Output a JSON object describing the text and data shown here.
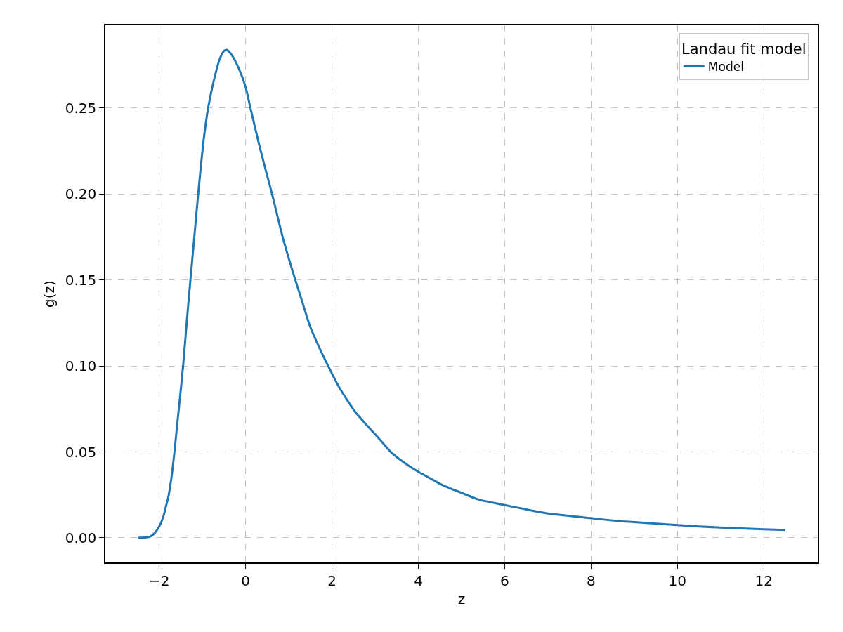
{
  "chart_data": {
    "type": "line",
    "xlabel": "z",
    "ylabel": "g(z)",
    "legend_title": "Landau fit model",
    "x": [
      -2.5,
      -2.3,
      -2.22,
      -2.11,
      -2.0,
      -1.95,
      -1.9,
      -1.85,
      -1.79,
      -1.72,
      -1.65,
      -1.57,
      -1.52,
      -1.45,
      -1.355,
      -1.28,
      -1.19,
      -1.1,
      -0.98,
      -0.87,
      -0.76,
      -0.6,
      -0.5,
      -0.44,
      -0.33,
      -0.16,
      0,
      0.11,
      0.33,
      0.61,
      0.87,
      1.15,
      1.27,
      1.49,
      1.7,
      1.91,
      2.14,
      2.27,
      2.54,
      2.82,
      3.09,
      3.36,
      3.74,
      4,
      4.29,
      4.56,
      5,
      5.38,
      6,
      6.47,
      7,
      8,
      8.64,
      9,
      10,
      11,
      12,
      12.5
    ],
    "series": [
      {
        "name": "Model",
        "color": "#1f77b4",
        "values": [
          0.0,
          0.0003,
          0.0007,
          0.0027,
          0.0068,
          0.0095,
          0.013,
          0.018,
          0.024,
          0.035,
          0.05,
          0.07,
          0.082,
          0.1,
          0.1287,
          0.15,
          0.175,
          0.2,
          0.23,
          0.25,
          0.2636,
          0.2786,
          0.2832,
          0.2838,
          0.2811,
          0.273,
          0.262,
          0.25,
          0.2268,
          0.2,
          0.1737,
          0.15,
          0.1406,
          0.1231,
          0.1109,
          0.1,
          0.0887,
          0.0833,
          0.0732,
          0.0651,
          0.0577,
          0.05,
          0.0426,
          0.0385,
          0.0344,
          0.0307,
          0.0262,
          0.0224,
          0.0191,
          0.0167,
          0.0142,
          0.0115,
          0.0098,
          0.0092,
          0.0074,
          0.006,
          0.005,
          0.0046
        ]
      }
    ],
    "xlim": [
      -3.25,
      13.25
    ],
    "ylim": [
      -0.0143,
      0.2981
    ],
    "xticks": [
      {
        "value": -2,
        "label": "−2"
      },
      0,
      2,
      4,
      6,
      8,
      10,
      12
    ],
    "yticks": [
      {
        "value": 0,
        "label": "0.00"
      },
      {
        "value": 0.05,
        "label": "0.05"
      },
      {
        "value": 0.1,
        "label": "0.10"
      },
      {
        "value": 0.15,
        "label": "0.15"
      },
      {
        "value": 0.2,
        "label": "0.20"
      },
      {
        "value": 0.25,
        "label": "0.25"
      }
    ],
    "grid": true,
    "legend": "top right",
    "line_style": "solid"
  }
}
